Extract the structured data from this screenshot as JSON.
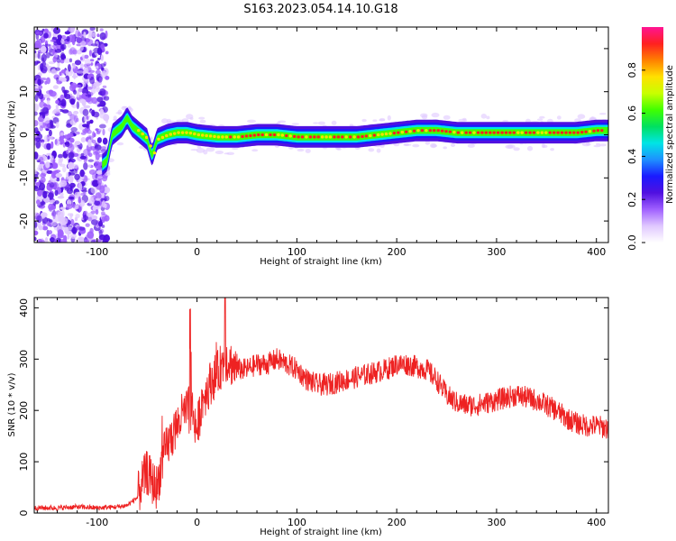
{
  "title": "S163.2023.054.14.10.G18",
  "colors": {
    "snr_line": "#ee2222",
    "axis": "#000000",
    "colormap": [
      "#ffffff",
      "#e0c8ff",
      "#a060ff",
      "#5010e0",
      "#1a1aff",
      "#1e90ff",
      "#00e5e5",
      "#00e060",
      "#40ff00",
      "#c8ff00",
      "#ffe000",
      "#ff8000",
      "#ff2020",
      "#ff1493"
    ]
  },
  "chart_data": [
    {
      "type": "heatmap",
      "xlabel": "Height of straight line (km)",
      "ylabel": "Frequency (Hz)",
      "xlim": [
        -163,
        412
      ],
      "ylim": [
        -25,
        25
      ],
      "xticks": [
        -100,
        0,
        100,
        200,
        300,
        400
      ],
      "yticks": [
        -20,
        -10,
        0,
        10,
        20
      ],
      "ridge": {
        "x": [
          -95,
          -90,
          -85,
          -80,
          -75,
          -70,
          -65,
          -60,
          -55,
          -50,
          -45,
          -40,
          -30,
          -20,
          -10,
          0,
          20,
          40,
          60,
          80,
          100,
          120,
          140,
          160,
          180,
          200,
          220,
          240,
          260,
          280,
          300,
          320,
          340,
          360,
          380,
          400,
          412
        ],
        "y": [
          -7,
          -6,
          0,
          1,
          2,
          4,
          2,
          1,
          0,
          -1,
          -5,
          -1,
          0,
          0.5,
          0.5,
          0,
          -0.5,
          -0.5,
          0,
          0,
          -0.5,
          -0.5,
          -0.5,
          -0.5,
          0,
          0.5,
          1,
          1,
          0.5,
          0.5,
          0.5,
          0.5,
          0.5,
          0.5,
          0.5,
          1,
          1
        ]
      },
      "colorbar": {
        "label": "Normalized spectral amplitude",
        "range": [
          0,
          1
        ],
        "ticks": [
          "0.0",
          "0.2",
          "0.4",
          "0.6",
          "0.8"
        ]
      }
    },
    {
      "type": "line",
      "xlabel": "Height of straight line (km)",
      "ylabel": "SNR (10 * v/v)",
      "xlim": [
        -163,
        412
      ],
      "ylim": [
        0,
        420
      ],
      "xticks": [
        -100,
        0,
        100,
        200,
        300,
        400
      ],
      "yticks": [
        0,
        100,
        200,
        300,
        400
      ],
      "series": [
        {
          "x": [
            -163,
            -140,
            -120,
            -100,
            -80,
            -70,
            -60,
            -55,
            -50,
            -45,
            -40,
            -35,
            -30,
            -25,
            -20,
            -15,
            -10,
            -5,
            0,
            5,
            10,
            15,
            20,
            25,
            30,
            35,
            40,
            50,
            60,
            70,
            80,
            90,
            100,
            110,
            120,
            130,
            140,
            150,
            160,
            170,
            180,
            190,
            200,
            210,
            220,
            230,
            240,
            250,
            260,
            270,
            280,
            290,
            300,
            310,
            320,
            330,
            340,
            350,
            360,
            370,
            380,
            390,
            400,
            412
          ],
          "values": [
            10,
            10,
            12,
            10,
            12,
            15,
            30,
            60,
            80,
            60,
            50,
            100,
            130,
            150,
            170,
            190,
            200,
            205,
            160,
            220,
            240,
            260,
            270,
            290,
            300,
            290,
            280,
            280,
            290,
            290,
            300,
            290,
            280,
            260,
            250,
            250,
            255,
            260,
            265,
            270,
            275,
            280,
            290,
            290,
            285,
            280,
            260,
            230,
            215,
            210,
            210,
            215,
            220,
            225,
            230,
            225,
            220,
            210,
            200,
            185,
            175,
            170,
            170,
            165
          ]
        }
      ]
    }
  ]
}
